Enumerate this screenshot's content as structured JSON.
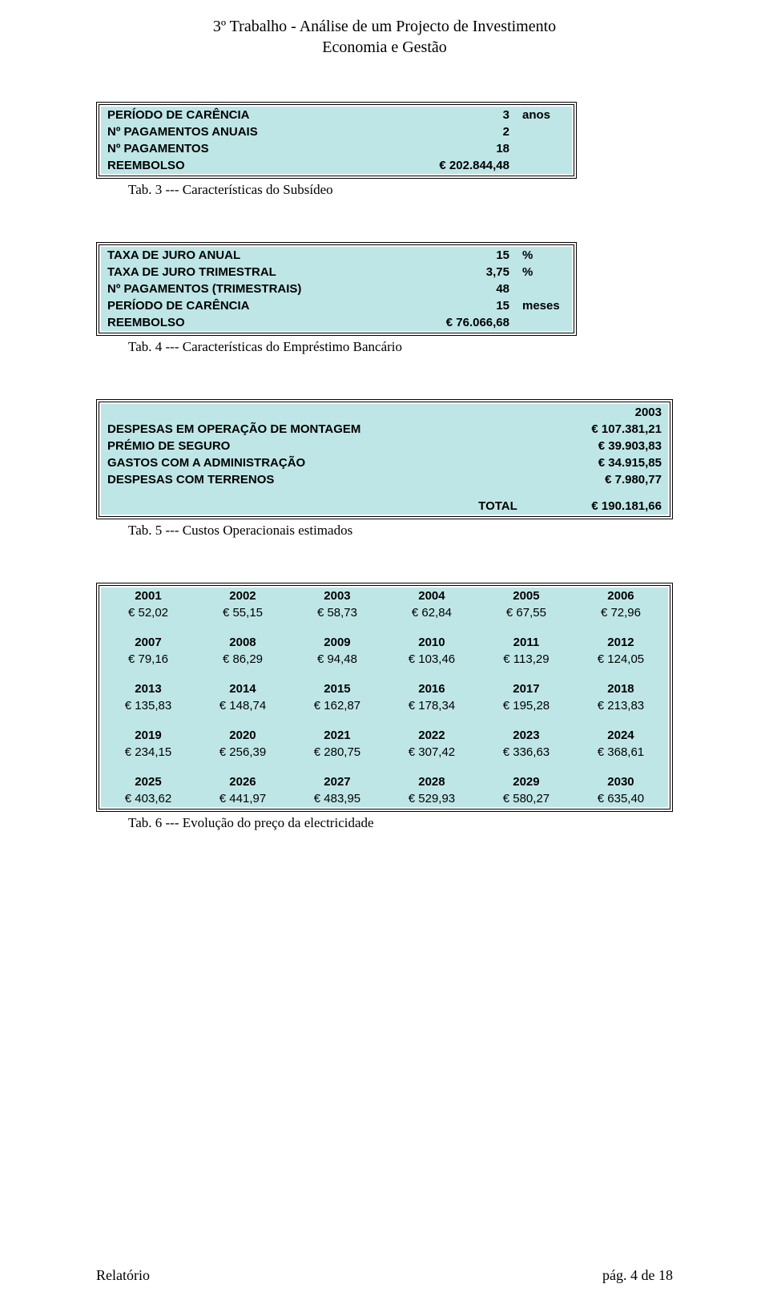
{
  "header": {
    "line1": "3º Trabalho - Análise de um Projecto de Investimento",
    "line2": "Economia e Gestão"
  },
  "colors": {
    "panel_bg": "#bfe6e6",
    "border": "#000000",
    "page_bg": "#ffffff"
  },
  "typography": {
    "header_family": "Times New Roman",
    "header_fontsize": 20,
    "table_family": "Arial",
    "table_fontsize": 15,
    "caption_family": "Times New Roman",
    "caption_fontsize": 17
  },
  "tab3": {
    "rows": [
      {
        "label": "PERÍODO DE CARÊNCIA",
        "value": "3",
        "unit": "anos"
      },
      {
        "label": "Nº PAGAMENTOS ANUAIS",
        "value": "2",
        "unit": ""
      },
      {
        "label": "Nº PAGAMENTOS",
        "value": "18",
        "unit": ""
      },
      {
        "label": "REEMBOLSO",
        "value": "€ 202.844,48",
        "unit": ""
      }
    ],
    "caption": "Tab. 3 --- Características do Subsídeo"
  },
  "tab4": {
    "rows": [
      {
        "label": "TAXA DE JURO ANUAL",
        "value": "15",
        "unit": "%"
      },
      {
        "label": "TAXA DE JURO TRIMESTRAL",
        "value": "3,75",
        "unit": "%"
      },
      {
        "label": "Nº PAGAMENTOS  (TRIMESTRAIS)",
        "value": "48",
        "unit": ""
      },
      {
        "label": "PERÍODO DE CARÊNCIA",
        "value": "15",
        "unit": "meses"
      },
      {
        "label": "REEMBOLSO",
        "value": "€ 76.066,68",
        "unit": ""
      }
    ],
    "caption": "Tab. 4 --- Características do Empréstimo Bancário"
  },
  "tab5": {
    "year_header": "2003",
    "rows": [
      {
        "label": "DESPESAS EM OPERAÇÃO DE MONTAGEM",
        "value": "€ 107.381,21"
      },
      {
        "label": "PRÉMIO DE SEGURO",
        "value": "€ 39.903,83"
      },
      {
        "label": "GASTOS COM A ADMINISTRAÇÃO",
        "value": "€ 34.915,85"
      },
      {
        "label": "DESPESAS COM TERRENOS",
        "value": "€ 7.980,77"
      }
    ],
    "total_label": "TOTAL",
    "total_value": "€ 190.181,66",
    "caption": "Tab. 5 --- Custos Operacionais estimados"
  },
  "tab6": {
    "blocks": [
      {
        "years": [
          "2001",
          "2002",
          "2003",
          "2004",
          "2005",
          "2006"
        ],
        "values": [
          "€ 52,02",
          "€ 55,15",
          "€ 58,73",
          "€ 62,84",
          "€ 67,55",
          "€ 72,96"
        ]
      },
      {
        "years": [
          "2007",
          "2008",
          "2009",
          "2010",
          "2011",
          "2012"
        ],
        "values": [
          "€ 79,16",
          "€ 86,29",
          "€ 94,48",
          "€ 103,46",
          "€ 113,29",
          "€ 124,05"
        ]
      },
      {
        "years": [
          "2013",
          "2014",
          "2015",
          "2016",
          "2017",
          "2018"
        ],
        "values": [
          "€ 135,83",
          "€ 148,74",
          "€ 162,87",
          "€ 178,34",
          "€ 195,28",
          "€ 213,83"
        ]
      },
      {
        "years": [
          "2019",
          "2020",
          "2021",
          "2022",
          "2023",
          "2024"
        ],
        "values": [
          "€ 234,15",
          "€ 256,39",
          "€ 280,75",
          "€ 307,42",
          "€ 336,63",
          "€ 368,61"
        ]
      },
      {
        "years": [
          "2025",
          "2026",
          "2027",
          "2028",
          "2029",
          "2030"
        ],
        "values": [
          "€ 403,62",
          "€ 441,97",
          "€ 483,95",
          "€ 529,93",
          "€ 580,27",
          "€ 635,40"
        ]
      }
    ],
    "caption": "Tab. 6 --- Evolução do preço da electricidade"
  },
  "footer": {
    "left": "Relatório",
    "right": "pág. 4 de 18"
  }
}
